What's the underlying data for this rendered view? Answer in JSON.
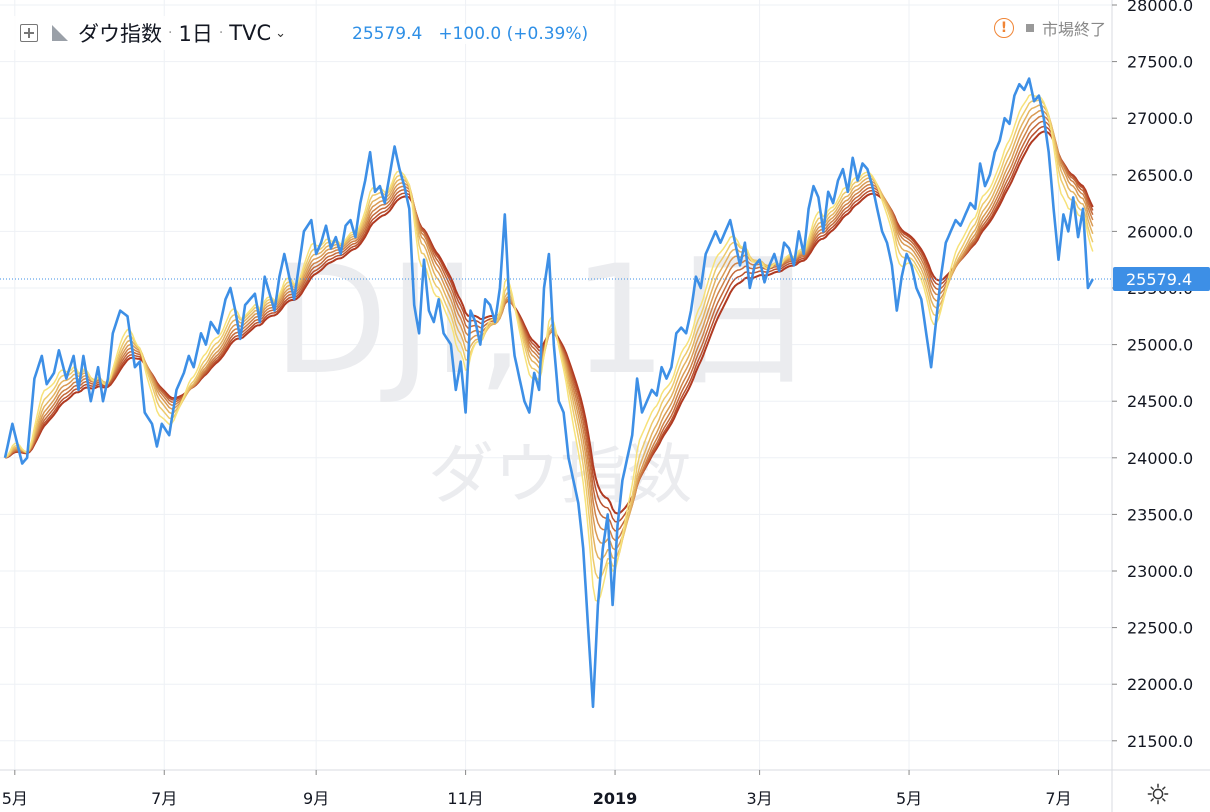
{
  "header": {
    "symbol_name": "ダウ指数",
    "interval": "1日",
    "exchange": "TVC",
    "price": "25579.4",
    "change": "+100.0 (+0.39%)",
    "market_status": "市場終了"
  },
  "watermark": {
    "line1": "DJI, 1日",
    "line2": "ダウ指数"
  },
  "colors": {
    "price_line": "#3d8fe6",
    "axis_text": "#131722",
    "grid": "#eef1f5",
    "ribbon_fast": "#f7e27a",
    "ribbon_slow": "#b03a22",
    "last_price_label": "#3d8fe6",
    "warning": "#f08536"
  },
  "icons": [
    "chart-add-icon",
    "flag-icon",
    "chevron-down-icon",
    "warning-icon",
    "gear-icon"
  ],
  "chart_data": {
    "type": "line",
    "title": "ダウ指数",
    "ylim": [
      21250,
      28000
    ],
    "y_ticks": [
      "28000.0",
      "27500.0",
      "27000.0",
      "26500.0",
      "26000.0",
      "25500.0",
      "25000.0",
      "24500.0",
      "24000.0",
      "23500.0",
      "23000.0",
      "22500.0",
      "22000.0",
      "21500.0"
    ],
    "x_ticks": [
      "5月",
      "7月",
      "9月",
      "11月",
      "2019",
      "3月",
      "5月",
      "7月"
    ],
    "x_tick_days": [
      4,
      65,
      127,
      188,
      249,
      308,
      369,
      430
    ],
    "last_price_label": "25579.4",
    "series": [
      {
        "name": "ダウ指数",
        "anchors": [
          [
            0,
            24000
          ],
          [
            3,
            24300
          ],
          [
            7,
            23950
          ],
          [
            9,
            24000
          ],
          [
            12,
            24700
          ],
          [
            15,
            24900
          ],
          [
            17,
            24650
          ],
          [
            20,
            24750
          ],
          [
            22,
            24950
          ],
          [
            25,
            24700
          ],
          [
            28,
            24900
          ],
          [
            30,
            24600
          ],
          [
            32,
            24900
          ],
          [
            35,
            24500
          ],
          [
            38,
            24800
          ],
          [
            40,
            24500
          ],
          [
            42,
            24700
          ],
          [
            44,
            25100
          ],
          [
            47,
            25300
          ],
          [
            50,
            25250
          ],
          [
            53,
            24800
          ],
          [
            55,
            24850
          ],
          [
            57,
            24400
          ],
          [
            60,
            24300
          ],
          [
            62,
            24100
          ],
          [
            64,
            24300
          ],
          [
            67,
            24200
          ],
          [
            70,
            24600
          ],
          [
            73,
            24750
          ],
          [
            75,
            24900
          ],
          [
            77,
            24800
          ],
          [
            80,
            25100
          ],
          [
            82,
            25000
          ],
          [
            84,
            25200
          ],
          [
            87,
            25100
          ],
          [
            90,
            25400
          ],
          [
            92,
            25500
          ],
          [
            94,
            25300
          ],
          [
            96,
            25050
          ],
          [
            98,
            25350
          ],
          [
            100,
            25400
          ],
          [
            102,
            25450
          ],
          [
            104,
            25200
          ],
          [
            106,
            25600
          ],
          [
            108,
            25450
          ],
          [
            110,
            25300
          ],
          [
            112,
            25600
          ],
          [
            114,
            25800
          ],
          [
            116,
            25600
          ],
          [
            118,
            25400
          ],
          [
            120,
            25700
          ],
          [
            122,
            26000
          ],
          [
            125,
            26100
          ],
          [
            127,
            25800
          ],
          [
            129,
            25900
          ],
          [
            131,
            26050
          ],
          [
            133,
            25850
          ],
          [
            135,
            25950
          ],
          [
            137,
            25800
          ],
          [
            139,
            26050
          ],
          [
            141,
            26100
          ],
          [
            143,
            25950
          ],
          [
            145,
            26250
          ],
          [
            147,
            26450
          ],
          [
            149,
            26700
          ],
          [
            151,
            26350
          ],
          [
            153,
            26400
          ],
          [
            155,
            26250
          ],
          [
            157,
            26500
          ],
          [
            159,
            26750
          ],
          [
            161,
            26550
          ],
          [
            163,
            26400
          ],
          [
            165,
            26200
          ],
          [
            167,
            25350
          ],
          [
            169,
            25100
          ],
          [
            171,
            25750
          ],
          [
            173,
            25300
          ],
          [
            175,
            25200
          ],
          [
            177,
            25400
          ],
          [
            179,
            25100
          ],
          [
            182,
            25000
          ],
          [
            184,
            24600
          ],
          [
            186,
            24850
          ],
          [
            188,
            24400
          ],
          [
            190,
            25300
          ],
          [
            192,
            25200
          ],
          [
            194,
            25000
          ],
          [
            196,
            25400
          ],
          [
            198,
            25350
          ],
          [
            200,
            25200
          ],
          [
            202,
            25500
          ],
          [
            204,
            26150
          ],
          [
            206,
            25300
          ],
          [
            208,
            24900
          ],
          [
            210,
            24700
          ],
          [
            212,
            24500
          ],
          [
            214,
            24400
          ],
          [
            216,
            24750
          ],
          [
            218,
            24600
          ],
          [
            220,
            25500
          ],
          [
            222,
            25800
          ],
          [
            224,
            25000
          ],
          [
            226,
            24500
          ],
          [
            228,
            24400
          ],
          [
            230,
            24000
          ],
          [
            232,
            23800
          ],
          [
            234,
            23600
          ],
          [
            236,
            23200
          ],
          [
            238,
            22500
          ],
          [
            240,
            21800
          ],
          [
            242,
            22700
          ],
          [
            244,
            23200
          ],
          [
            246,
            23500
          ],
          [
            248,
            22700
          ],
          [
            250,
            23400
          ],
          [
            252,
            23800
          ],
          [
            254,
            24000
          ],
          [
            256,
            24200
          ],
          [
            258,
            24700
          ],
          [
            260,
            24400
          ],
          [
            262,
            24500
          ],
          [
            264,
            24600
          ],
          [
            266,
            24550
          ],
          [
            268,
            24800
          ],
          [
            270,
            24700
          ],
          [
            272,
            24800
          ],
          [
            274,
            25100
          ],
          [
            276,
            25150
          ],
          [
            278,
            25100
          ],
          [
            280,
            25300
          ],
          [
            282,
            25600
          ],
          [
            284,
            25500
          ],
          [
            286,
            25800
          ],
          [
            288,
            25900
          ],
          [
            290,
            26000
          ],
          [
            292,
            25900
          ],
          [
            294,
            26000
          ],
          [
            296,
            26100
          ],
          [
            298,
            25900
          ],
          [
            300,
            25700
          ],
          [
            302,
            25900
          ],
          [
            304,
            25500
          ],
          [
            306,
            25700
          ],
          [
            308,
            25750
          ],
          [
            310,
            25550
          ],
          [
            312,
            25700
          ],
          [
            314,
            25800
          ],
          [
            316,
            25650
          ],
          [
            318,
            25900
          ],
          [
            320,
            25850
          ],
          [
            322,
            25700
          ],
          [
            324,
            26000
          ],
          [
            326,
            25800
          ],
          [
            328,
            26200
          ],
          [
            330,
            26400
          ],
          [
            332,
            26300
          ],
          [
            334,
            26000
          ],
          [
            336,
            26350
          ],
          [
            338,
            26250
          ],
          [
            340,
            26450
          ],
          [
            342,
            26550
          ],
          [
            344,
            26350
          ],
          [
            346,
            26650
          ],
          [
            348,
            26450
          ],
          [
            350,
            26600
          ],
          [
            352,
            26550
          ],
          [
            354,
            26400
          ],
          [
            356,
            26200
          ],
          [
            358,
            26000
          ],
          [
            360,
            25900
          ],
          [
            362,
            25700
          ],
          [
            364,
            25300
          ],
          [
            366,
            25600
          ],
          [
            368,
            25800
          ],
          [
            370,
            25700
          ],
          [
            372,
            25500
          ],
          [
            374,
            25400
          ],
          [
            376,
            25100
          ],
          [
            378,
            24800
          ],
          [
            380,
            25200
          ],
          [
            382,
            25600
          ],
          [
            384,
            25900
          ],
          [
            386,
            26000
          ],
          [
            388,
            26100
          ],
          [
            390,
            26050
          ],
          [
            392,
            26150
          ],
          [
            394,
            26250
          ],
          [
            396,
            26200
          ],
          [
            398,
            26600
          ],
          [
            400,
            26400
          ],
          [
            402,
            26500
          ],
          [
            404,
            26700
          ],
          [
            406,
            26800
          ],
          [
            408,
            27000
          ],
          [
            410,
            26950
          ],
          [
            412,
            27200
          ],
          [
            414,
            27300
          ],
          [
            416,
            27250
          ],
          [
            418,
            27350
          ],
          [
            420,
            27150
          ],
          [
            422,
            27200
          ],
          [
            424,
            27000
          ],
          [
            426,
            26700
          ],
          [
            428,
            26200
          ],
          [
            430,
            25750
          ],
          [
            432,
            26150
          ],
          [
            434,
            26000
          ],
          [
            436,
            26300
          ],
          [
            438,
            25950
          ],
          [
            440,
            26200
          ],
          [
            442,
            25500
          ],
          [
            444,
            25579
          ]
        ]
      }
    ],
    "ribbon": {
      "description": "Guppy-style EMA ribbon",
      "periods": [
        9,
        12,
        15,
        18,
        21,
        24,
        27,
        30
      ]
    }
  }
}
